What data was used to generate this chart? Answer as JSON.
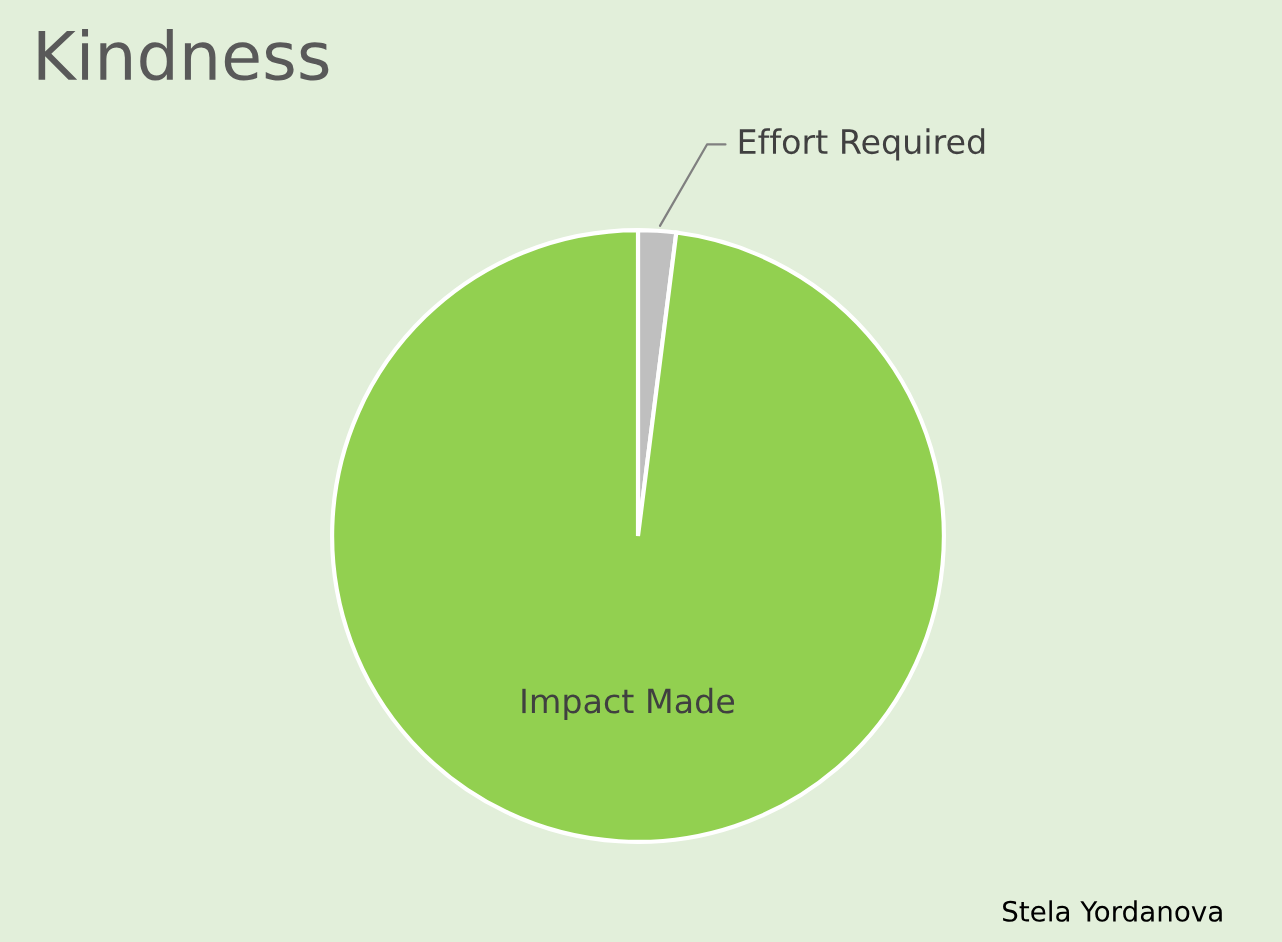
{
  "chart_data": {
    "type": "pie",
    "title": "Kindness",
    "categories": [
      "Effort Required",
      "Impact Made"
    ],
    "values": [
      2,
      98
    ],
    "colors": [
      "#bfbfbf",
      "#92d050"
    ],
    "annotations": [
      "Stela Yordanova"
    ]
  }
}
